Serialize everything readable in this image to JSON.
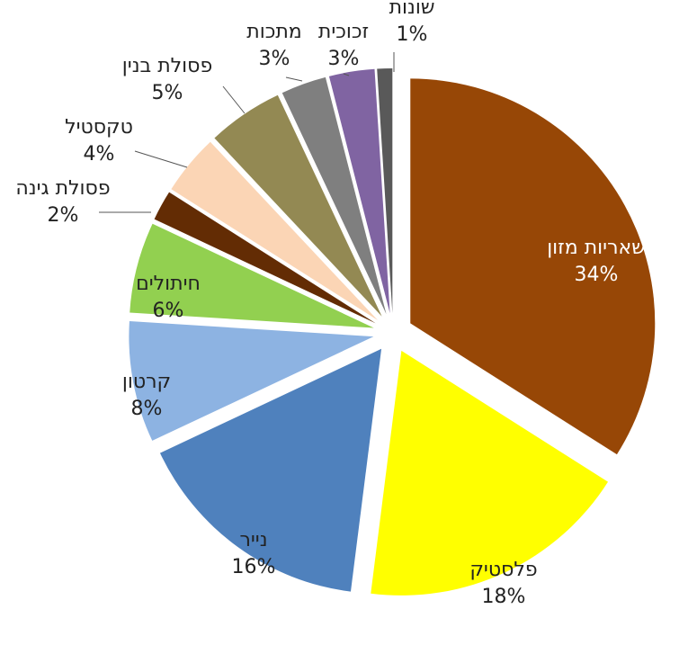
{
  "chart_data": {
    "type": "pie",
    "exploded": true,
    "start_angle_deg": 0,
    "direction": "clockwise",
    "slices": [
      {
        "label": "שאריות מזון",
        "value": 34,
        "value_label": "34%",
        "color": "#974706",
        "label_color": "#ffffff"
      },
      {
        "label": "פלסטיק",
        "value": 18,
        "value_label": "18%",
        "color": "#ffff00",
        "label_color": "#222222"
      },
      {
        "label": "נייר",
        "value": 16,
        "value_label": "16%",
        "color": "#4f81bd",
        "label_color": "#222222"
      },
      {
        "label": "קרטון",
        "value": 8,
        "value_label": "8%",
        "color": "#8db3e2",
        "label_color": "#222222"
      },
      {
        "label": "חיתולים",
        "value": 6,
        "value_label": "6%",
        "color": "#92d050",
        "label_color": "#222222"
      },
      {
        "label": "פסולת גינה",
        "value": 2,
        "value_label": "2%",
        "color": "#632c04",
        "label_color": "#222222"
      },
      {
        "label": "טקסטיל",
        "value": 4,
        "value_label": "4%",
        "color": "#fbd5b5",
        "label_color": "#222222"
      },
      {
        "label": "פסולת בנין",
        "value": 5,
        "value_label": "5%",
        "color": "#938953",
        "label_color": "#222222"
      },
      {
        "label": "מתכות",
        "value": 3,
        "value_label": "3%",
        "color": "#7f7f7f",
        "label_color": "#222222"
      },
      {
        "label": "זכוכית",
        "value": 3,
        "value_label": "3%",
        "color": "#8064a2",
        "label_color": "#222222"
      },
      {
        "label": "שונות",
        "value": 1,
        "value_label": "1%",
        "color": "#595959",
        "label_color": "#222222"
      }
    ]
  }
}
